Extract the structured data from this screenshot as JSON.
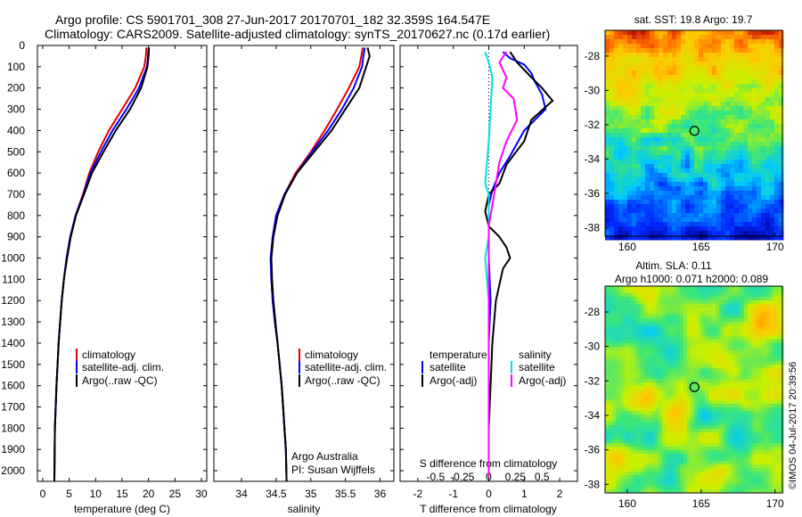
{
  "header": {
    "line1": "Argo profile: CS 5901701_308 27-Jun-2017 20170701_182 32.359S 164.547E",
    "line2": "Climatology: CARS2009. Satellite-adjusted climatology: synTS_20170627.nc (0.17d earlier)"
  },
  "colors": {
    "climatology": "#e00000",
    "satellite": "#0000ff",
    "argo": "#000000",
    "satellite_s": "#00e0e0",
    "argo_s": "#ff00ff"
  },
  "depth_axis": {
    "ylim": [
      0,
      2050
    ],
    "ticks": [
      0,
      100,
      200,
      300,
      400,
      500,
      600,
      700,
      800,
      900,
      1000,
      1100,
      1200,
      1300,
      1400,
      1500,
      1600,
      1700,
      1800,
      1900,
      2000
    ]
  },
  "annotations": {
    "agency": "Argo Australia",
    "pi": "PI: Susan Wijffels",
    "timestamp": "©IMOS 04-Jul-2017 20:39:56"
  },
  "chart_data": [
    {
      "type": "line",
      "xlabel": "temperature (deg C)",
      "xlim": [
        -1,
        31
      ],
      "xticks": [
        0,
        5,
        10,
        15,
        20,
        25,
        30
      ],
      "legend": [
        "climatology",
        "satellite-adj. clim.",
        "Argo(..raw -QC)"
      ],
      "series": [
        {
          "name": "climatology",
          "color": "climatology",
          "x": [
            19.6,
            19.5,
            19.2,
            17.5,
            15.0,
            12.5,
            10.5,
            8.8,
            7.6,
            6.2,
            5.2,
            4.5,
            4.0,
            3.6,
            3.3,
            3.0,
            2.8,
            2.6,
            2.45,
            2.3,
            2.2
          ],
          "y": [
            10,
            50,
            100,
            200,
            300,
            400,
            500,
            600,
            700,
            800,
            900,
            1000,
            1100,
            1200,
            1300,
            1400,
            1500,
            1600,
            1700,
            1800,
            2050
          ]
        },
        {
          "name": "satellite-adj. clim.",
          "color": "satellite",
          "x": [
            20.0,
            19.9,
            19.7,
            18.2,
            15.8,
            13.2,
            11.0,
            9.0,
            7.7,
            6.2,
            5.2,
            4.5,
            4.0,
            3.6,
            3.3,
            3.0,
            2.8,
            2.6,
            2.45,
            2.3,
            2.2
          ],
          "y": [
            10,
            50,
            100,
            200,
            300,
            400,
            500,
            600,
            700,
            800,
            900,
            1000,
            1100,
            1200,
            1300,
            1400,
            1500,
            1600,
            1700,
            1800,
            2050
          ]
        },
        {
          "name": "Argo(..raw -QC)",
          "color": "argo",
          "x": [
            20.1,
            20.0,
            19.8,
            18.6,
            16.5,
            13.8,
            11.5,
            9.3,
            7.8,
            6.3,
            5.3,
            4.6,
            4.0,
            3.6,
            3.3,
            3.0,
            2.8,
            2.6,
            2.45,
            2.3,
            2.2
          ],
          "y": [
            10,
            50,
            100,
            200,
            300,
            400,
            500,
            600,
            700,
            800,
            900,
            1000,
            1100,
            1200,
            1300,
            1400,
            1500,
            1600,
            1700,
            1800,
            2050
          ]
        }
      ]
    },
    {
      "type": "line",
      "xlabel": "salinity",
      "xlim": [
        33.6,
        36.2
      ],
      "xticks": [
        34,
        34.5,
        35,
        35.5,
        36
      ],
      "legend": [
        "climatology",
        "satellite-adj. clim.",
        "Argo(..raw -QC)"
      ],
      "series": [
        {
          "name": "climatology",
          "color": "climatology",
          "x": [
            35.75,
            35.73,
            35.7,
            35.55,
            35.38,
            35.2,
            35.0,
            34.78,
            34.62,
            34.5,
            34.45,
            34.42,
            34.43,
            34.45,
            34.48,
            34.52,
            34.55,
            34.58,
            34.6,
            34.62,
            34.64,
            34.65
          ],
          "y": [
            10,
            50,
            100,
            200,
            300,
            400,
            500,
            600,
            700,
            800,
            900,
            1000,
            1100,
            1200,
            1300,
            1400,
            1500,
            1600,
            1700,
            1800,
            1900,
            2050
          ]
        },
        {
          "name": "satellite-adj. clim.",
          "color": "satellite",
          "x": [
            35.78,
            35.76,
            35.74,
            35.62,
            35.45,
            35.25,
            35.02,
            34.8,
            34.62,
            34.5,
            34.45,
            34.42,
            34.43,
            34.45,
            34.48,
            34.52,
            34.55,
            34.58,
            34.6,
            34.62,
            34.64,
            34.65
          ],
          "y": [
            10,
            50,
            100,
            200,
            300,
            400,
            500,
            600,
            700,
            800,
            900,
            1000,
            1100,
            1200,
            1300,
            1400,
            1500,
            1600,
            1700,
            1800,
            1900,
            2050
          ]
        },
        {
          "name": "Argo(..raw -QC)",
          "color": "argo",
          "x": [
            35.82,
            35.85,
            35.8,
            35.7,
            35.5,
            35.3,
            35.05,
            34.8,
            34.63,
            34.52,
            34.46,
            34.43,
            34.44,
            34.46,
            34.49,
            34.52,
            34.55,
            34.58,
            34.6,
            34.62,
            34.64,
            34.65
          ],
          "y": [
            10,
            50,
            100,
            200,
            300,
            400,
            500,
            600,
            700,
            800,
            900,
            1000,
            1100,
            1200,
            1300,
            1400,
            1500,
            1600,
            1700,
            1800,
            1900,
            2050
          ]
        }
      ]
    },
    {
      "type": "line",
      "xlabel": "T difference from climatology",
      "xlabel_top": "S difference from climatology",
      "xlim": [
        -2.5,
        2.5
      ],
      "xticks": [
        -2,
        -1,
        0,
        1,
        2
      ],
      "xticks_top": [
        {
          "v": -1.5,
          "label": "-0.5"
        },
        {
          "v": -0.75,
          "label": "-0.25"
        },
        {
          "v": 0,
          "label": "0"
        },
        {
          "v": 0.75,
          "label": "0.25"
        },
        {
          "v": 1.5,
          "label": "0.5"
        }
      ],
      "legend_left_title": "temperature",
      "legend_right_title": "salinity",
      "legend": [
        "satellite",
        "Argo(-adj)",
        "satellite",
        "Argo(-adj)"
      ],
      "series": [
        {
          "name": "satellite",
          "color": "satellite",
          "x": [
            0.4,
            0.6,
            1.0,
            1.2,
            1.3,
            1.5,
            1.6,
            1.3,
            1.0,
            0.8,
            0.6,
            0.3,
            0.1,
            0.0,
            0.0,
            0.0,
            0.05,
            0.0,
            0.0,
            0.0,
            0.0,
            0.0
          ],
          "y": [
            30,
            60,
            90,
            130,
            170,
            230,
            300,
            350,
            400,
            460,
            520,
            600,
            680,
            750,
            850,
            1000,
            1200,
            1400,
            1600,
            1800,
            1900,
            2030
          ]
        },
        {
          "name": "Argo(-adj)",
          "color": "argo",
          "x": [
            0.6,
            0.8,
            1.2,
            1.5,
            1.8,
            1.2,
            1.0,
            0.5,
            0.3,
            0.0,
            -0.1,
            0.0,
            0.3,
            0.5,
            0.6,
            0.4,
            0.2,
            0.1,
            0.05,
            0.0,
            0.0
          ],
          "y": [
            30,
            80,
            150,
            200,
            260,
            350,
            450,
            560,
            650,
            700,
            780,
            850,
            900,
            950,
            1000,
            1050,
            1200,
            1400,
            1600,
            1800,
            2030
          ]
        },
        {
          "name": "satellite S",
          "color": "satellite_s",
          "x": [
            -0.1,
            0.0,
            0.1,
            0.05,
            0.0,
            -0.05,
            -0.1,
            0.0,
            0.0,
            0.0,
            -0.1,
            -0.05,
            0.0,
            0.0,
            0.0,
            0.0,
            0.0,
            0.0,
            0.0
          ],
          "y": [
            30,
            80,
            150,
            300,
            450,
            550,
            650,
            700,
            800,
            900,
            1000,
            1100,
            1200,
            1300,
            1500,
            1700,
            1800,
            1900,
            2030
          ]
        },
        {
          "name": "Argo S",
          "color": "argo_s",
          "x": [
            0.5,
            0.3,
            0.5,
            0.4,
            0.7,
            0.8,
            0.5,
            0.3,
            0.2,
            0.1,
            0.0,
            0.0,
            0.0,
            0.0,
            0.0,
            0.0
          ],
          "y": [
            30,
            80,
            150,
            200,
            250,
            350,
            450,
            550,
            650,
            750,
            850,
            1000,
            1200,
            1500,
            1800,
            2030
          ]
        }
      ]
    },
    {
      "type": "heatmap",
      "title": "sat. SST: 19.8 Argo: 19.7",
      "xticks": [
        160,
        165,
        170
      ],
      "yticks": [
        -28,
        -30,
        -32,
        -34,
        -36,
        -38
      ],
      "xlim": [
        158.5,
        170.5
      ],
      "ylim": [
        -38.5,
        -26.5
      ],
      "marker": {
        "lon": 164.547,
        "lat": -32.359
      }
    },
    {
      "type": "heatmap",
      "title_line1": "Altim. SLA: 0.11",
      "title_line2": "Argo h1000: 0.071 h2000: 0.089",
      "xticks": [
        160,
        165,
        170
      ],
      "yticks": [
        -28,
        -30,
        -32,
        -34,
        -36,
        -38
      ],
      "xlim": [
        158.5,
        170.5
      ],
      "ylim": [
        -38.5,
        -26.5
      ],
      "marker": {
        "lon": 164.547,
        "lat": -32.359
      }
    }
  ]
}
